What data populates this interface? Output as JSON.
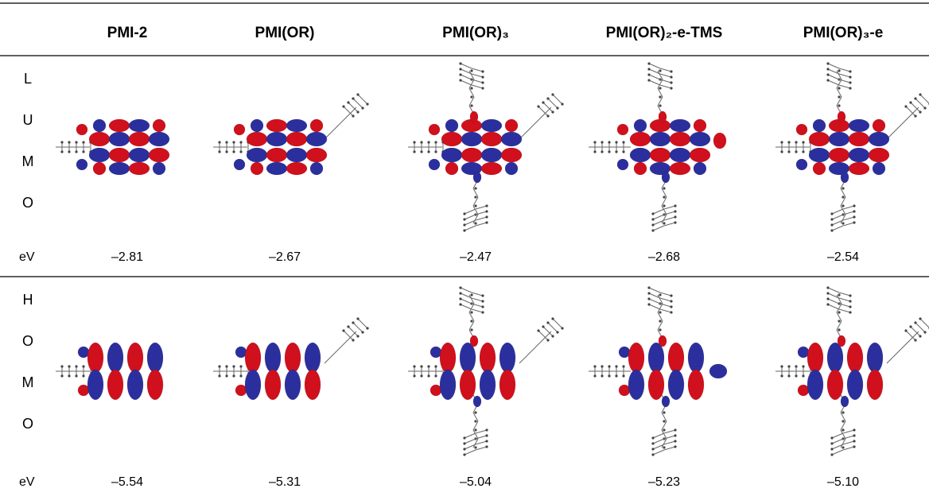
{
  "table": {
    "columns": [
      "PMI-2",
      "PMI(OR)",
      "PMI(OR)₃",
      "PMI(OR)₂-e-TMS",
      "PMI(OR)₃-e"
    ],
    "rows": [
      {
        "side": [
          "L",
          "U",
          "M",
          "O"
        ],
        "unit": "eV",
        "values": [
          "–2.81",
          "–2.67",
          "–2.47",
          "–2.68",
          "–2.54"
        ]
      },
      {
        "side": [
          "H",
          "O",
          "M",
          "O"
        ],
        "unit": "eV",
        "values": [
          "–5.54",
          "–5.31",
          "–5.04",
          "–5.23",
          "–5.10"
        ]
      }
    ]
  }
}
